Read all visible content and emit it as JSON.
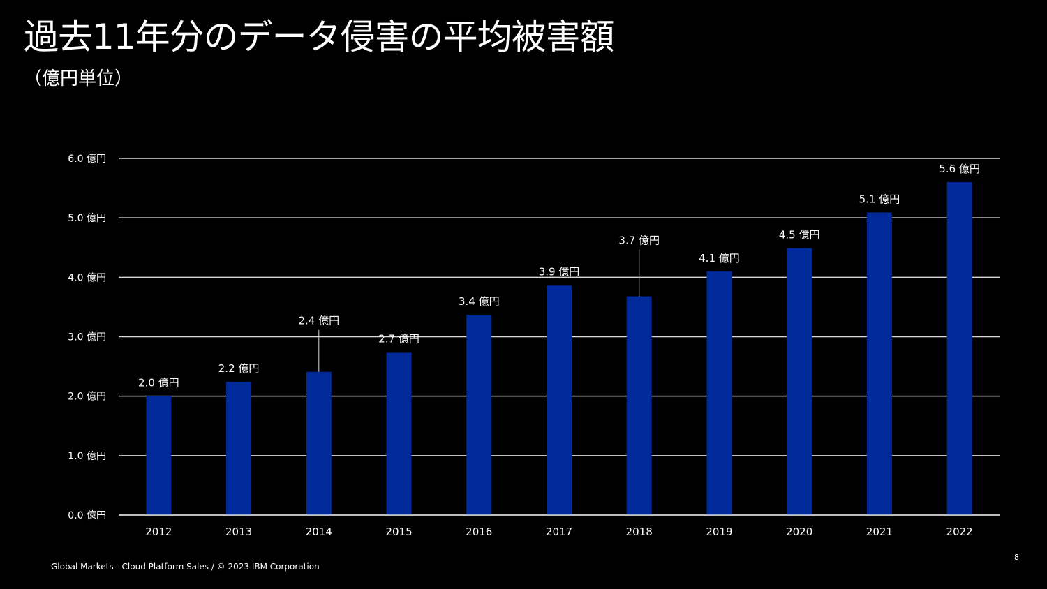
{
  "slide": {
    "title": "過去11年分のデータ侵害の平均被害額",
    "subtitle": "（億円単位）",
    "footer": "Global Markets - Cloud Platform Sales / © 2023 IBM Corporation",
    "page_number": "8"
  },
  "colors": {
    "background": "#000000",
    "bar": "#00299a",
    "grid": "#d9d9d9",
    "text": "#ffffff"
  },
  "chart_data": {
    "type": "bar",
    "categories": [
      "2012",
      "2013",
      "2014",
      "2015",
      "2016",
      "2017",
      "2018",
      "2019",
      "2020",
      "2021",
      "2022"
    ],
    "values": [
      2.0,
      2.24,
      2.41,
      2.73,
      3.37,
      3.86,
      3.68,
      4.1,
      4.49,
      5.09,
      5.6
    ],
    "value_labels": [
      "2.0 億円",
      "2.2 億円",
      "2.4 億円",
      "2.7 億円",
      "3.4 億円",
      "3.9 億円",
      "3.7 億円",
      "4.1 億円",
      "4.5 億円",
      "5.1 億円",
      "5.6 億円"
    ],
    "y_ticks": [
      0,
      1,
      2,
      3,
      4,
      5,
      6
    ],
    "y_tick_labels": [
      "0.0 億円",
      "1.0 億円",
      "2.0 億円",
      "3.0 億円",
      "4.0 億円",
      "5.0 億円",
      "6.0 億円"
    ],
    "ylim": [
      0,
      6
    ],
    "grid": true,
    "legend": "none"
  }
}
